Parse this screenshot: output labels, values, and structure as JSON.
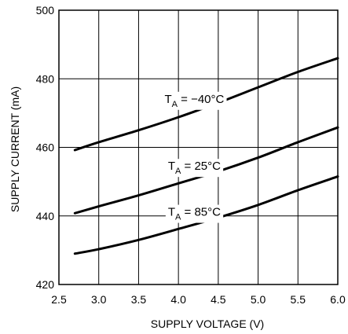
{
  "chart_data": {
    "type": "line",
    "title": "",
    "xlabel": "SUPPLY VOLTAGE (V)",
    "ylabel": "SUPPLY CURRENT (mA)",
    "xlim": [
      2.5,
      6.0
    ],
    "ylim": [
      420,
      500
    ],
    "xticks": [
      "2.5",
      "3.0",
      "3.5",
      "4.0",
      "4.5",
      "5.0",
      "5.5",
      "6.0"
    ],
    "yticks": [
      "420",
      "440",
      "460",
      "480",
      "500"
    ],
    "grid": true,
    "series": [
      {
        "name": "T_A = −40°C",
        "label_main": "T",
        "label_sub": "A",
        "label_rest": " = −40°C",
        "x": [
          2.7,
          3.0,
          3.5,
          4.0,
          4.5,
          5.0,
          5.5,
          6.0
        ],
        "y": [
          459.2,
          461.5,
          465.0,
          468.8,
          473.0,
          477.5,
          482.0,
          486.0
        ]
      },
      {
        "name": "T_A = 25°C",
        "label_main": "T",
        "label_sub": "A",
        "label_rest": " = 25°C",
        "x": [
          2.7,
          3.0,
          3.5,
          4.0,
          4.5,
          5.0,
          5.5,
          6.0
        ],
        "y": [
          440.8,
          442.8,
          446.0,
          449.5,
          453.0,
          457.0,
          461.5,
          465.8
        ]
      },
      {
        "name": "T_A = 85°C",
        "label_main": "T",
        "label_sub": "A",
        "label_rest": " = 85°C",
        "x": [
          2.7,
          3.0,
          3.5,
          4.0,
          4.5,
          5.0,
          5.5,
          6.0
        ],
        "y": [
          429.0,
          430.3,
          433.0,
          436.2,
          439.5,
          443.2,
          447.5,
          451.5
        ]
      }
    ]
  }
}
